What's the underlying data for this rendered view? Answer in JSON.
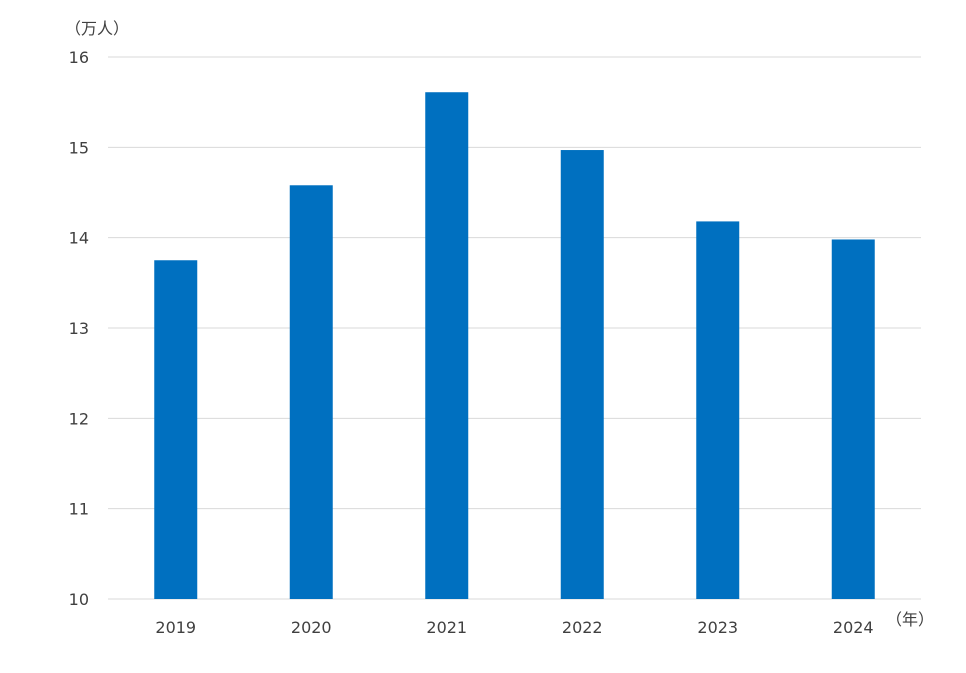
{
  "chart_data": {
    "type": "bar",
    "categories": [
      "2019",
      "2020",
      "2021",
      "2022",
      "2023",
      "2024"
    ],
    "values": [
      13.75,
      14.58,
      15.61,
      14.97,
      14.18,
      13.98
    ],
    "ylabel": "（万人）",
    "xlabel": "（年）",
    "ylim": [
      10,
      16
    ],
    "yticks": [
      "10",
      "11",
      "12",
      "13",
      "14",
      "15",
      "16"
    ],
    "grid": true,
    "legend": "none",
    "bar_color": "#0070C0",
    "grid_color": "#D9D9D9"
  }
}
